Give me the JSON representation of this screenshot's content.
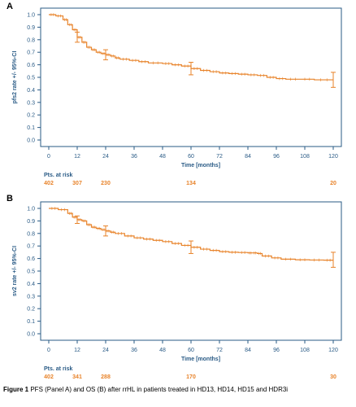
{
  "figure": {
    "caption_label": "Figure 1",
    "caption_text": " PFS (Panel A) and OS (B) after rrHL in patients treated in HD13, HD14, HD15 and HDR3i"
  },
  "colors": {
    "curve": "#e8832a",
    "axis": "#2a5b86",
    "risk_header": "#2a5b86",
    "risk_numbers": "#e8832a"
  },
  "chart_data": [
    {
      "type": "line",
      "panel_label": "A",
      "xlabel": "Time [months]",
      "ylabel": "pfs2 rate +/- 95%-CI",
      "xlim": [
        0,
        120
      ],
      "ylim": [
        0,
        1.0
      ],
      "xticks": [
        0,
        12,
        24,
        36,
        48,
        60,
        72,
        84,
        96,
        108,
        120
      ],
      "yticks": [
        0.0,
        0.1,
        0.2,
        0.3,
        0.4,
        0.5,
        0.6,
        0.7,
        0.8,
        0.9,
        1.0
      ],
      "grid": false,
      "series": [
        {
          "x": [
            0,
            3,
            6,
            8,
            10,
            12,
            14,
            16,
            18,
            20,
            22,
            24,
            26,
            28,
            30,
            34,
            38,
            42,
            48,
            52,
            56,
            60,
            64,
            68,
            72,
            76,
            80,
            84,
            88,
            92,
            96,
            100,
            106,
            112,
            120
          ],
          "y": [
            1.0,
            0.99,
            0.96,
            0.92,
            0.88,
            0.82,
            0.78,
            0.74,
            0.72,
            0.7,
            0.69,
            0.68,
            0.67,
            0.655,
            0.645,
            0.635,
            0.625,
            0.615,
            0.61,
            0.6,
            0.59,
            0.57,
            0.555,
            0.545,
            0.535,
            0.53,
            0.525,
            0.52,
            0.515,
            0.5,
            0.49,
            0.485,
            0.485,
            0.48,
            0.48
          ]
        }
      ],
      "confidence_intervals": [
        {
          "x": 12,
          "y": 0.82,
          "lower": 0.78,
          "upper": 0.86
        },
        {
          "x": 24,
          "y": 0.68,
          "lower": 0.64,
          "upper": 0.72
        },
        {
          "x": 60,
          "y": 0.57,
          "lower": 0.52,
          "upper": 0.62
        },
        {
          "x": 120,
          "y": 0.48,
          "lower": 0.42,
          "upper": 0.54
        }
      ],
      "risk_table": {
        "label": "Pts. at risk",
        "entries": [
          {
            "x": 0,
            "n": "402"
          },
          {
            "x": 12,
            "n": "307"
          },
          {
            "x": 24,
            "n": "230"
          },
          {
            "x": 60,
            "n": "134"
          },
          {
            "x": 120,
            "n": "20"
          }
        ]
      }
    },
    {
      "type": "line",
      "panel_label": "B",
      "xlabel": "Time [months]",
      "ylabel": "sv2 rate +/- 95%-CI",
      "xlim": [
        0,
        120
      ],
      "ylim": [
        0,
        1.0
      ],
      "xticks": [
        0,
        12,
        24,
        36,
        48,
        60,
        72,
        84,
        96,
        108,
        120
      ],
      "yticks": [
        0.0,
        0.1,
        0.2,
        0.3,
        0.4,
        0.5,
        0.6,
        0.7,
        0.8,
        0.9,
        1.0
      ],
      "grid": false,
      "series": [
        {
          "x": [
            0,
            4,
            8,
            10,
            12,
            14,
            16,
            18,
            20,
            22,
            24,
            26,
            28,
            32,
            36,
            40,
            44,
            48,
            52,
            56,
            60,
            64,
            68,
            72,
            76,
            80,
            84,
            86,
            88,
            90,
            94,
            98,
            104,
            110,
            116,
            120
          ],
          "y": [
            1.0,
            0.99,
            0.96,
            0.93,
            0.91,
            0.9,
            0.87,
            0.85,
            0.84,
            0.83,
            0.82,
            0.81,
            0.8,
            0.78,
            0.765,
            0.755,
            0.745,
            0.735,
            0.72,
            0.705,
            0.69,
            0.675,
            0.665,
            0.655,
            0.65,
            0.648,
            0.645,
            0.645,
            0.64,
            0.62,
            0.605,
            0.595,
            0.59,
            0.588,
            0.587,
            0.587
          ]
        }
      ],
      "confidence_intervals": [
        {
          "x": 12,
          "y": 0.91,
          "lower": 0.88,
          "upper": 0.94
        },
        {
          "x": 24,
          "y": 0.82,
          "lower": 0.78,
          "upper": 0.86
        },
        {
          "x": 60,
          "y": 0.69,
          "lower": 0.64,
          "upper": 0.74
        },
        {
          "x": 120,
          "y": 0.587,
          "lower": 0.53,
          "upper": 0.65
        }
      ],
      "risk_table": {
        "label": "Pts. at risk",
        "entries": [
          {
            "x": 0,
            "n": "402"
          },
          {
            "x": 12,
            "n": "341"
          },
          {
            "x": 24,
            "n": "288"
          },
          {
            "x": 60,
            "n": "170"
          },
          {
            "x": 120,
            "n": "30"
          }
        ]
      }
    }
  ]
}
